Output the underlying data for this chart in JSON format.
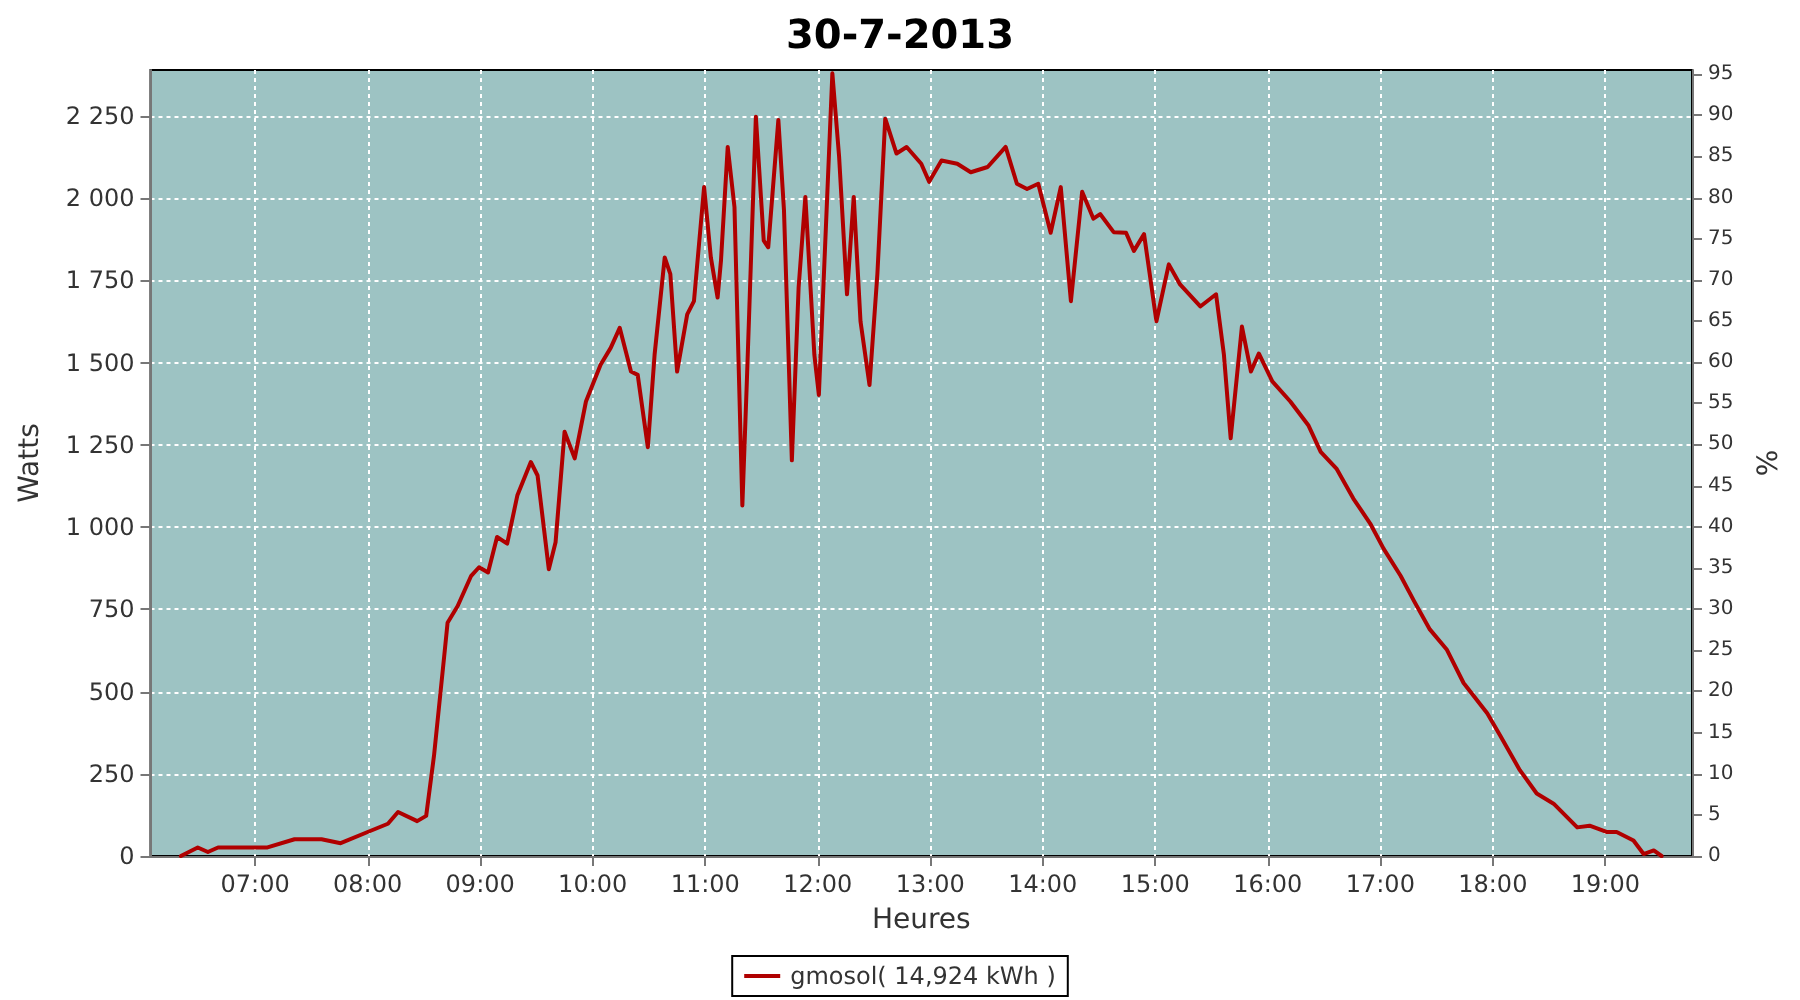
{
  "chart_data": {
    "type": "line",
    "title": "30-7-2013",
    "xlabel": "Heures",
    "ylabel": "Watts",
    "y2label": "%",
    "xlim": [
      6.07,
      19.77
    ],
    "xticks": [
      {
        "value": 7,
        "label": "07:00"
      },
      {
        "value": 8,
        "label": "08:00"
      },
      {
        "value": 9,
        "label": "09:00"
      },
      {
        "value": 10,
        "label": "10:00"
      },
      {
        "value": 11,
        "label": "11:00"
      },
      {
        "value": 12,
        "label": "12:00"
      },
      {
        "value": 13,
        "label": "13:00"
      },
      {
        "value": 14,
        "label": "14:00"
      },
      {
        "value": 15,
        "label": "15:00"
      },
      {
        "value": 16,
        "label": "16:00"
      },
      {
        "value": 17,
        "label": "17:00"
      },
      {
        "value": 18,
        "label": "18:00"
      },
      {
        "value": 19,
        "label": "19:00"
      }
    ],
    "ylim": [
      0,
      2390
    ],
    "yticks": [
      0,
      250,
      500,
      750,
      {
        "value": 1000,
        "label": "1 000"
      },
      {
        "value": 1250,
        "label": "1 250"
      },
      {
        "value": 1500,
        "label": "1 500"
      },
      {
        "value": 1750,
        "label": "1 750"
      },
      {
        "value": 2000,
        "label": "2 000"
      },
      {
        "value": 2250,
        "label": "2 250"
      }
    ],
    "y2lim": [
      0,
      95.5
    ],
    "y2ticks": [
      0,
      5,
      10,
      15,
      20,
      25,
      30,
      35,
      40,
      45,
      50,
      55,
      60,
      65,
      70,
      75,
      80,
      85,
      90,
      95
    ],
    "grid": true,
    "legend": "bottom",
    "marker": "none",
    "line_style": "solid",
    "series": [
      {
        "name": "gmosol( 14,924 kWh )",
        "color": "#b00000",
        "x": [
          6.34,
          6.49,
          6.58,
          6.67,
          7.11,
          7.35,
          7.59,
          7.76,
          8.0,
          8.18,
          8.27,
          8.44,
          8.52,
          8.59,
          8.68,
          8.71,
          8.8,
          8.92,
          8.99,
          9.07,
          9.15,
          9.24,
          9.33,
          9.45,
          9.51,
          9.61,
          9.67,
          9.75,
          9.84,
          9.94,
          10.07,
          10.16,
          10.24,
          10.34,
          10.4,
          10.49,
          10.55,
          10.64,
          10.69,
          10.75,
          10.84,
          10.9,
          10.99,
          11.05,
          11.11,
          11.14,
          11.2,
          11.26,
          11.33,
          11.37,
          11.45,
          11.52,
          11.56,
          11.65,
          11.7,
          11.77,
          11.83,
          11.89,
          11.97,
          12.01,
          12.06,
          12.13,
          12.19,
          12.26,
          12.32,
          12.38,
          12.46,
          12.53,
          12.6,
          12.7,
          12.79,
          12.92,
          12.99,
          13.1,
          13.24,
          13.36,
          13.51,
          13.67,
          13.77,
          13.86,
          13.96,
          14.07,
          14.16,
          14.25,
          14.35,
          14.45,
          14.51,
          14.63,
          14.74,
          14.81,
          14.9,
          15.01,
          15.12,
          15.22,
          15.4,
          15.54,
          15.61,
          15.67,
          15.77,
          15.85,
          15.92,
          16.04,
          16.2,
          16.36,
          16.47,
          16.61,
          16.76,
          16.91,
          17.03,
          17.18,
          17.3,
          17.44,
          17.59,
          17.74,
          17.95,
          18.07,
          18.24,
          18.39,
          18.54,
          18.75,
          18.86,
          19.01,
          19.1,
          19.25,
          19.34,
          19.43,
          19.5
        ],
        "values": [
          0,
          26,
          12,
          26,
          26,
          51,
          51,
          39,
          73,
          98,
          134,
          106,
          122,
          306,
          607,
          709,
          760,
          852,
          878,
          862,
          970,
          950,
          1096,
          1198,
          1157,
          872,
          954,
          1290,
          1209,
          1382,
          1494,
          1545,
          1606,
          1473,
          1463,
          1243,
          1524,
          1820,
          1769,
          1473,
          1647,
          1687,
          2034,
          1820,
          1698,
          1810,
          2156,
          1973,
          1066,
          1443,
          2248,
          1871,
          1851,
          2238,
          1963,
          1203,
          1728,
          2004,
          1524,
          1402,
          1810,
          2380,
          2126,
          1708,
          2004,
          1626,
          1432,
          1769,
          2242,
          2136,
          2156,
          2105,
          2050,
          2115,
          2105,
          2079,
          2095,
          2156,
          2044,
          2028,
          2044,
          1895,
          2034,
          1687,
          2020,
          1938,
          1952,
          1897,
          1895,
          1840,
          1891,
          1626,
          1799,
          1738,
          1671,
          1708,
          1524,
          1270,
          1610,
          1473,
          1528,
          1443,
          1382,
          1310,
          1229,
          1178,
          1087,
          1011,
          934,
          852,
          775,
          689,
          628,
          526,
          434,
          363,
          261,
          190,
          159,
          87,
          92,
          73,
          73,
          47,
          6,
          17,
          0
        ]
      }
    ]
  }
}
